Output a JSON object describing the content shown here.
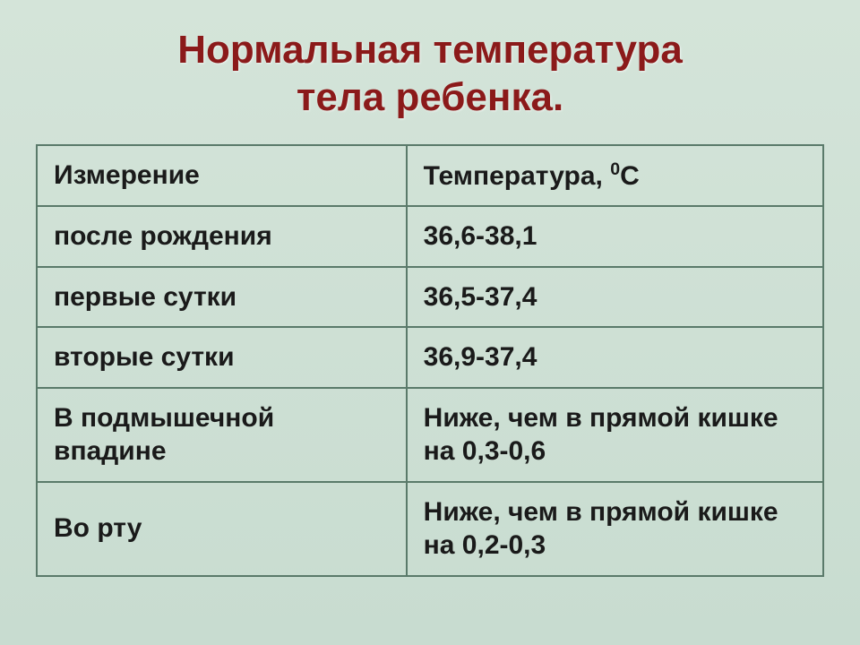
{
  "title_line1": "Нормальная температура",
  "title_line2": "тела ребенка.",
  "table": {
    "header": {
      "col1": "Измерение",
      "col2_prefix": "Температура, ",
      "col2_sup": "0",
      "col2_suffix": "С"
    },
    "rows": [
      {
        "label": "после рождения",
        "value": "36,6-38,1"
      },
      {
        "label": "первые сутки",
        "value": "36,5-37,4"
      },
      {
        "label": "вторые сутки",
        "value": "36,9-37,4"
      },
      {
        "label": "В подмышечной впадине",
        "value": "Ниже, чем в прямой кишке на 0,3-0,6"
      },
      {
        "label": "Во рту",
        "value": "Ниже, чем в прямой кишке на 0,2-0,3"
      }
    ]
  },
  "styling": {
    "title_color": "#8b1a1a",
    "title_fontsize": 44,
    "cell_fontsize": 30,
    "border_color": "#5a7a6a",
    "background_gradient_top": "#d4e4d9",
    "background_gradient_bottom": "#c8dcd0",
    "text_color": "#1a1a1a",
    "col_left_width_pct": 47,
    "col_right_width_pct": 53
  }
}
